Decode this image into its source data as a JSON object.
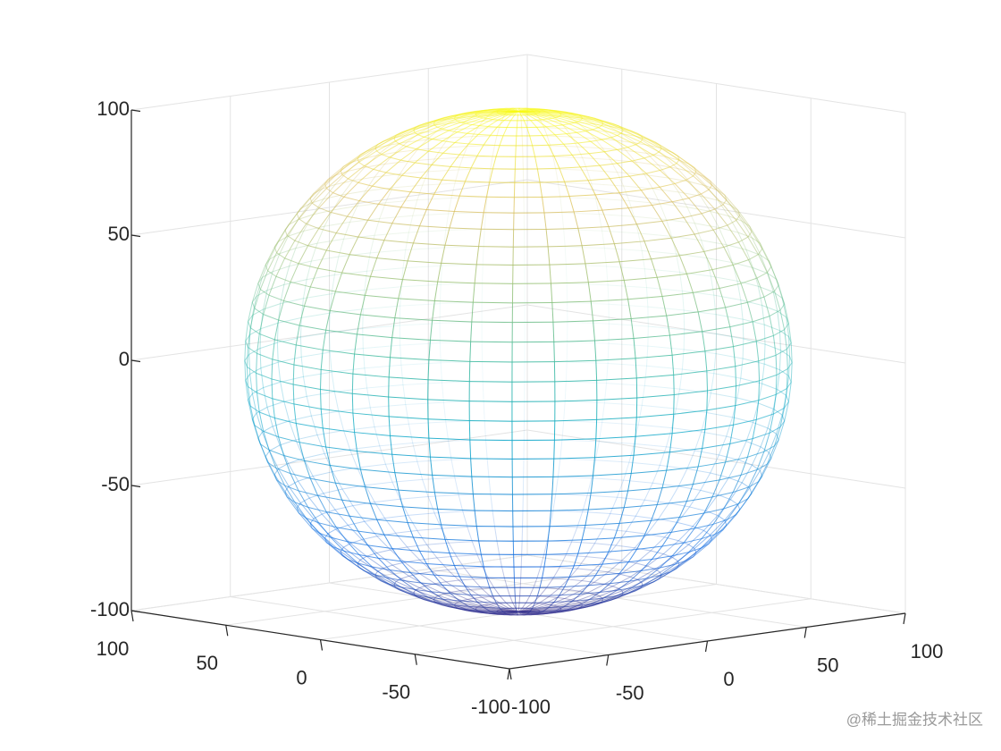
{
  "chart_data": {
    "type": "mesh",
    "surface": "sphere",
    "radius": 100,
    "segments": 40,
    "colormap": [
      "#352A87",
      "#0363E1",
      "#1485D4",
      "#06A7C6",
      "#38B99E",
      "#92BF73",
      "#D9BA56",
      "#F9FB0E"
    ],
    "xlim": [
      -100,
      100
    ],
    "xticks": [
      -100,
      -50,
      0,
      50,
      100
    ],
    "ylim": [
      -100,
      100
    ],
    "yticks": [
      -100,
      -50,
      0,
      50,
      100
    ],
    "zlim": [
      -100,
      100
    ],
    "zticks": [
      -100,
      -50,
      0,
      50,
      100
    ],
    "grid": true,
    "watermark": "@稀土掘金技术社区"
  }
}
